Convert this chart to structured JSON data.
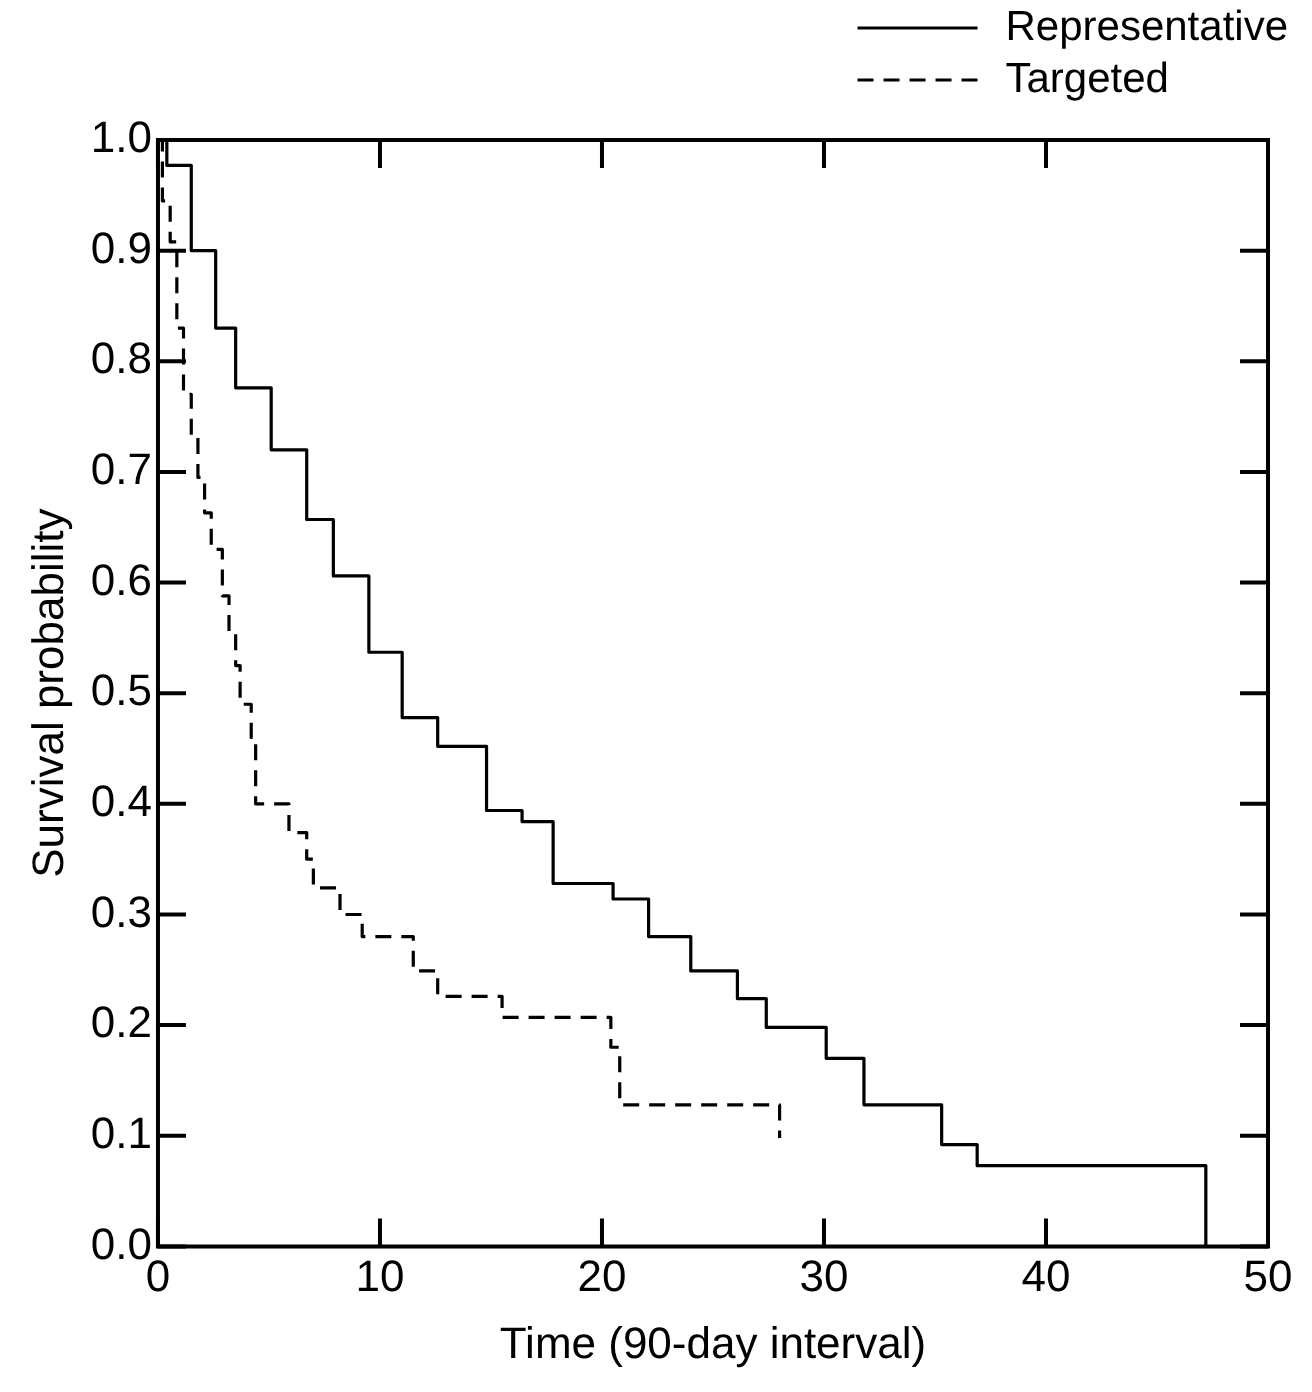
{
  "chart_data": {
    "type": "step",
    "xlabel": "Time (90-day interval)",
    "ylabel": "Survival probability",
    "xlim": [
      0,
      50
    ],
    "xticks": [
      0,
      10,
      20,
      30,
      40,
      50
    ],
    "ylim": [
      0,
      1
    ],
    "yticks": [
      {
        "value": 0,
        "label": "0.0"
      },
      0.1,
      0.2,
      0.3,
      0.4,
      0.5,
      0.6,
      0.7,
      0.8,
      0.9,
      {
        "value": 1,
        "label": "1.0"
      }
    ],
    "grid": false,
    "legend": "top right",
    "series": [
      {
        "name": "Representative",
        "color": "#000000",
        "line_style": "solid",
        "x": [
          0,
          0.4,
          1.5,
          2.6,
          3.5,
          5.1,
          6.7,
          7.9,
          9.5,
          11.0,
          12.6,
          14.8,
          16.4,
          17.8,
          20.5,
          22.1,
          24.0,
          26.1,
          27.4,
          30.1,
          31.8,
          35.3,
          36.9,
          47.2
        ],
        "values": [
          1.0,
          0.977,
          0.9,
          0.83,
          0.776,
          0.72,
          0.657,
          0.606,
          0.537,
          0.478,
          0.452,
          0.394,
          0.384,
          0.328,
          0.314,
          0.28,
          0.249,
          0.224,
          0.198,
          0.17,
          0.128,
          0.092,
          0.073,
          0
        ]
      },
      {
        "name": "Targeted",
        "color": "#000000",
        "line_style": "dashed",
        "x": [
          0,
          0.2,
          0.55,
          0.85,
          1.15,
          1.5,
          1.8,
          2.1,
          2.4,
          2.9,
          3.2,
          3.5,
          3.7,
          4.2,
          4.4,
          5.9,
          6.7,
          7.0,
          8.2,
          9.2,
          11.5,
          12.6,
          15.5,
          20.4,
          20.8,
          28.0
        ],
        "values": [
          1,
          0.945,
          0.908,
          0.83,
          0.77,
          0.733,
          0.695,
          0.663,
          0.63,
          0.588,
          0.556,
          0.525,
          0.49,
          0.46,
          0.4,
          0.374,
          0.35,
          0.324,
          0.3,
          0.28,
          0.249,
          0.226,
          0.207,
          0.18,
          0.128,
          0.098
        ]
      }
    ]
  }
}
